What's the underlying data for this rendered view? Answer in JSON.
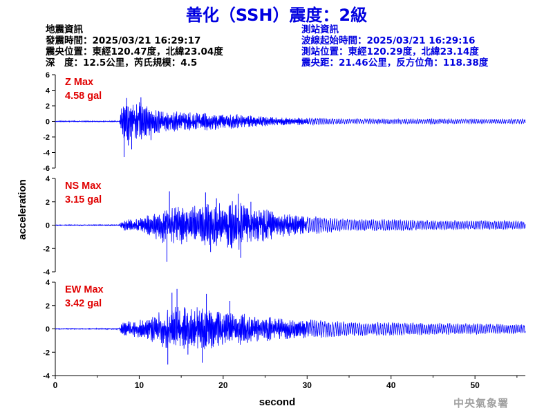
{
  "title": "善化（SSH）震度：2級",
  "earthquake_info": {
    "heading": "地震資訊",
    "origin_time": "發震時間：2025/03/21 16:29:17",
    "epicenter": "震央位置：東經120.47度，北緯23.04度",
    "depth_magnitude": "深　度：12.5公里，芮氏規模：4.5"
  },
  "station_info": {
    "heading": "測站資訊",
    "wave_start": "波線起始時間：2025/03/21 16:29:16",
    "location": "測站位置：東經120.29度，北緯23.14度",
    "distance_azimuth": "震央距：21.46公里，反方位角：118.38度"
  },
  "watermark": "中央氣象署",
  "colors": {
    "trace": "#0000ff",
    "max_label": "#e00000",
    "title": "#0000e0",
    "axis": "#000000"
  },
  "chart_data": {
    "type": "line",
    "xlabel": "second",
    "ylabel": "acceleration",
    "xlim": [
      0,
      56
    ],
    "xticks": [
      0,
      10,
      20,
      30,
      40,
      50
    ],
    "x_tick_labels": [
      "0",
      "10",
      "20",
      "30",
      "40",
      "50"
    ],
    "grid": false,
    "panels": [
      {
        "component": "Z",
        "max_label": "Z Max",
        "max_value": "4.58 gal",
        "ylim": [
          -6,
          6
        ],
        "yticks": [
          -6,
          -4,
          -2,
          0,
          2,
          4,
          6
        ],
        "y_tick_labels": [
          "-6",
          "-4",
          "-2",
          "0",
          "2",
          "4",
          "6"
        ],
        "envelope": [
          [
            0,
            0.07
          ],
          [
            7.6,
            0.08
          ],
          [
            8.0,
            2.8
          ],
          [
            9.0,
            2.3
          ],
          [
            10.0,
            2.8
          ],
          [
            11.0,
            2.2
          ],
          [
            13.0,
            1.4
          ],
          [
            16.0,
            1.2
          ],
          [
            19.0,
            1.2
          ],
          [
            22.0,
            0.9
          ],
          [
            26.0,
            0.55
          ],
          [
            30.0,
            0.45
          ],
          [
            35.0,
            0.33
          ],
          [
            40.0,
            0.32
          ],
          [
            45.0,
            0.33
          ],
          [
            50.0,
            0.3
          ],
          [
            56.0,
            0.3
          ]
        ],
        "peaks": [
          [
            8.2,
            -4.58
          ],
          [
            8.5,
            3.0
          ],
          [
            9.1,
            -3.6
          ],
          [
            10.2,
            3.1
          ],
          [
            11.4,
            -2.4
          ],
          [
            8.7,
            -3.1
          ]
        ]
      },
      {
        "component": "NS",
        "max_label": "NS Max",
        "max_value": "3.15 gal",
        "ylim": [
          -4,
          4
        ],
        "yticks": [
          -4,
          -2,
          0,
          2,
          4
        ],
        "y_tick_labels": [
          "-4",
          "-2",
          "0",
          "2",
          "4"
        ],
        "envelope": [
          [
            0,
            0.04
          ],
          [
            7.6,
            0.05
          ],
          [
            8.0,
            0.5
          ],
          [
            10.0,
            0.6
          ],
          [
            11.0,
            0.9
          ],
          [
            13.0,
            1.7
          ],
          [
            15.0,
            1.7
          ],
          [
            18.0,
            1.9
          ],
          [
            20.0,
            2.0
          ],
          [
            22.0,
            2.2
          ],
          [
            24.0,
            1.6
          ],
          [
            27.0,
            1.1
          ],
          [
            30.0,
            0.8
          ],
          [
            35.0,
            0.5
          ],
          [
            40.0,
            0.5
          ],
          [
            45.0,
            0.4
          ],
          [
            50.0,
            0.4
          ],
          [
            56.0,
            0.35
          ]
        ],
        "peaks": [
          [
            13.6,
            2.9
          ],
          [
            13.3,
            -3.15
          ],
          [
            17.9,
            2.8
          ],
          [
            18.5,
            -2.3
          ],
          [
            21.8,
            2.7
          ],
          [
            22.1,
            -2.8
          ],
          [
            19.2,
            2.3
          ],
          [
            23.3,
            2.0
          ]
        ]
      },
      {
        "component": "EW",
        "max_label": "EW Max",
        "max_value": "3.42 gal",
        "ylim": [
          -4,
          4
        ],
        "yticks": [
          -4,
          -2,
          0,
          2,
          4
        ],
        "y_tick_labels": [
          "-4",
          "-2",
          "0",
          "2",
          "4"
        ],
        "envelope": [
          [
            0,
            0.04
          ],
          [
            7.6,
            0.05
          ],
          [
            8.0,
            0.6
          ],
          [
            10.0,
            0.8
          ],
          [
            12.0,
            1.3
          ],
          [
            13.5,
            1.9
          ],
          [
            16.0,
            1.9
          ],
          [
            18.0,
            2.0
          ],
          [
            20.0,
            1.6
          ],
          [
            22.0,
            1.5
          ],
          [
            25.0,
            1.1
          ],
          [
            28.0,
            0.9
          ],
          [
            30.0,
            0.8
          ],
          [
            35.0,
            0.6
          ],
          [
            40.0,
            0.55
          ],
          [
            45.0,
            0.5
          ],
          [
            50.0,
            0.45
          ],
          [
            56.0,
            0.4
          ]
        ],
        "peaks": [
          [
            13.4,
            -3.05
          ],
          [
            13.9,
            3.1
          ],
          [
            14.5,
            3.42
          ],
          [
            15.8,
            -2.2
          ],
          [
            17.5,
            -2.9
          ],
          [
            18.0,
            3.0
          ],
          [
            20.8,
            2.4
          ]
        ]
      }
    ]
  }
}
